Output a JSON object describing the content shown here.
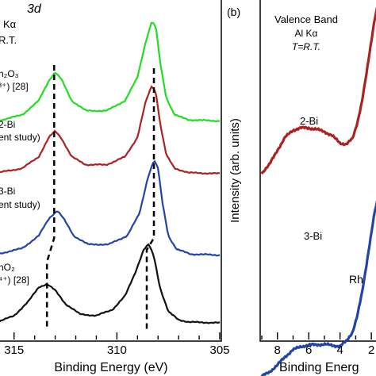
{
  "chart_data": [
    {
      "type": "line",
      "panel": "",
      "title_lines": [
        "3d",
        "Kα",
        "R.T."
      ],
      "xlabel": "Binding Energy (eV)",
      "xlim": [
        315.8,
        305
      ],
      "x_reversed": true,
      "x_ticks": [
        315,
        310,
        305
      ],
      "x_tick_labels": [
        "315",
        "310",
        "305"
      ],
      "series": [
        {
          "name": "h2O3",
          "label_lines": [
            "h₂O₃",
            "³⁺) [28]"
          ],
          "color": "#22dd22",
          "x": [
            315.8,
            314.6,
            313.8,
            313.3,
            313.0,
            312.7,
            312.2,
            311.5,
            310.5,
            309.6,
            309.0,
            308.6,
            308.3,
            308.1,
            307.9,
            307.6,
            307.2,
            306.5,
            305.0
          ],
          "y": [
            0.02,
            0.08,
            0.22,
            0.42,
            0.5,
            0.43,
            0.22,
            0.12,
            0.12,
            0.22,
            0.45,
            0.8,
            1.0,
            0.94,
            0.6,
            0.25,
            0.08,
            0.03,
            0.02
          ]
        },
        {
          "name": "2-Bi",
          "label_lines": [
            "2-Bi",
            "ent study)"
          ],
          "color": "#aa2222",
          "x": [
            315.8,
            314.6,
            313.8,
            313.3,
            313.0,
            312.7,
            312.2,
            311.5,
            310.5,
            309.6,
            309.0,
            308.6,
            308.3,
            308.1,
            307.9,
            307.6,
            307.2,
            306.5,
            305.0
          ],
          "y": [
            0.02,
            0.07,
            0.2,
            0.42,
            0.49,
            0.41,
            0.2,
            0.11,
            0.11,
            0.2,
            0.42,
            0.82,
            1.0,
            0.92,
            0.58,
            0.22,
            0.07,
            0.02,
            0.01
          ]
        },
        {
          "name": "3-Bi",
          "label_lines": [
            "3-Bi",
            "ent study)"
          ],
          "color": "#2244aa",
          "x": [
            315.8,
            314.6,
            313.8,
            313.3,
            312.9,
            312.6,
            312.1,
            311.4,
            310.4,
            309.5,
            308.9,
            308.5,
            308.2,
            308.0,
            307.8,
            307.5,
            307.1,
            306.4,
            305.0
          ],
          "y": [
            0.03,
            0.09,
            0.22,
            0.4,
            0.48,
            0.4,
            0.22,
            0.13,
            0.13,
            0.22,
            0.45,
            0.82,
            1.0,
            0.92,
            0.58,
            0.22,
            0.08,
            0.03,
            0.02
          ]
        },
        {
          "name": "hO2",
          "label_lines": [
            "hO₂",
            "⁴⁺) [28]"
          ],
          "color": "#111111",
          "x": [
            315.8,
            315.0,
            314.3,
            313.8,
            313.4,
            313.0,
            312.5,
            311.8,
            311.0,
            310.2,
            309.6,
            309.1,
            308.7,
            308.45,
            308.2,
            307.9,
            307.5,
            307.0,
            306.5,
            305.0
          ],
          "y": [
            0.02,
            0.1,
            0.28,
            0.46,
            0.5,
            0.42,
            0.25,
            0.12,
            0.1,
            0.18,
            0.35,
            0.65,
            0.93,
            1.0,
            0.85,
            0.45,
            0.15,
            0.05,
            0.02,
            0.01
          ]
        }
      ],
      "peak_guides": [
        {
          "x": [
            313.05,
            313.05,
            313.4,
            313.4
          ]
        },
        {
          "x": [
            308.2,
            308.2,
            308.55,
            308.55
          ]
        }
      ]
    },
    {
      "type": "line",
      "panel": "(b)",
      "title_lines": [
        "Valence Band",
        "Al Kα",
        "T=R.T."
      ],
      "xlabel": "Binding Energ",
      "ylabel": "Intensity (arb. units)",
      "xlim": [
        9,
        1.5
      ],
      "x_reversed": true,
      "x_ticks": [
        8,
        6,
        4,
        2
      ],
      "x_tick_labels": [
        "8",
        "6",
        "4",
        "2"
      ],
      "series": [
        {
          "name": "2-Bi",
          "label_lines": [
            "2-Bi"
          ],
          "color": "#aa2222",
          "x": [
            9.0,
            8.5,
            8.0,
            7.5,
            7.0,
            6.5,
            6.0,
            5.5,
            5.0,
            4.5,
            4.0,
            3.6,
            3.2,
            2.9,
            2.6,
            2.3,
            2.0,
            1.8,
            1.6,
            1.5
          ],
          "y": [
            0.0,
            0.12,
            0.32,
            0.5,
            0.6,
            0.63,
            0.63,
            0.61,
            0.58,
            0.52,
            0.42,
            0.4,
            0.48,
            0.7,
            1.0,
            1.4,
            1.85,
            2.15,
            2.35,
            2.45
          ]
        },
        {
          "name": "3-Bi",
          "label_lines": [
            "3-Bi"
          ],
          "color": "#2244aa",
          "x": [
            9.0,
            8.5,
            8.0,
            7.5,
            7.0,
            6.5,
            6.0,
            5.5,
            5.0,
            4.5,
            4.0,
            3.6,
            3.2,
            2.9,
            2.6,
            2.3,
            2.0,
            1.8,
            1.6,
            1.5
          ],
          "y": [
            -1.15,
            -1.08,
            -0.98,
            -0.85,
            -0.75,
            -0.7,
            -0.68,
            -0.67,
            -0.67,
            -0.68,
            -0.7,
            -0.62,
            -0.48,
            -0.25,
            0.1,
            0.55,
            1.0,
            1.3,
            1.5,
            1.6
          ]
        }
      ],
      "extra_label": "Rh"
    }
  ]
}
